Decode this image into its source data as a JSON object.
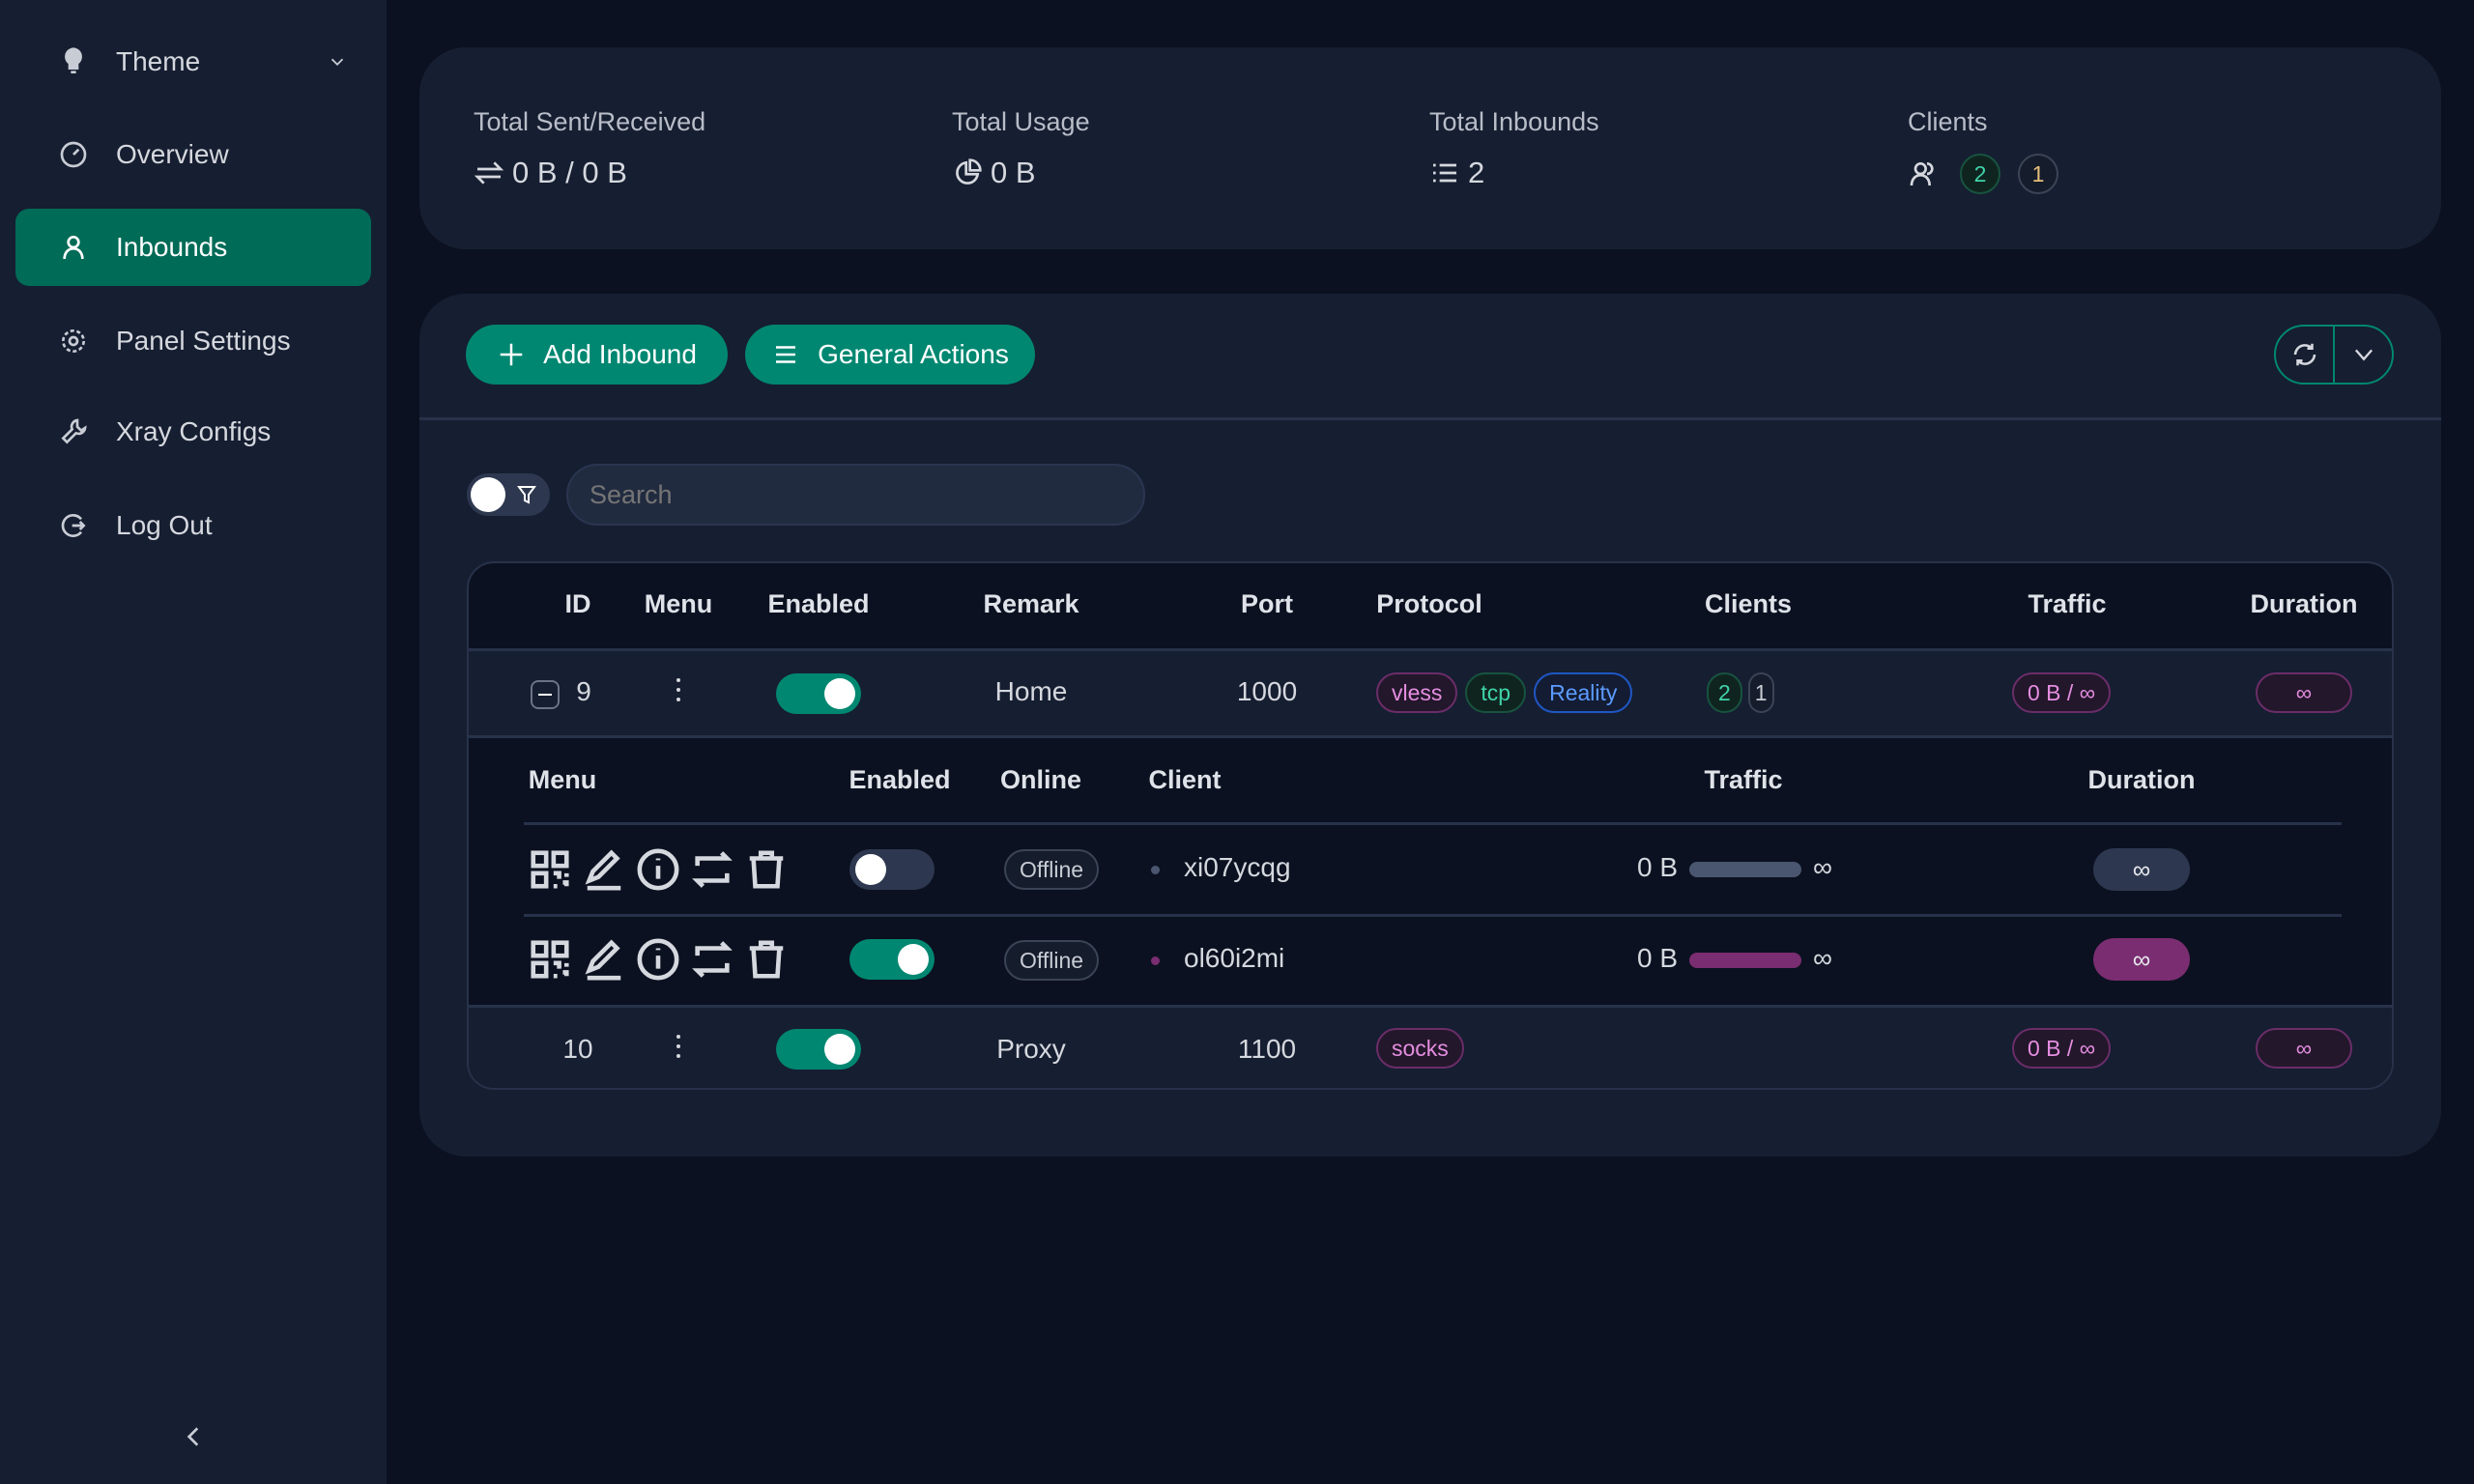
{
  "sidebar": {
    "items": [
      {
        "label": "Theme",
        "icon": "bulb-icon"
      },
      {
        "label": "Overview",
        "icon": "dashboard-icon"
      },
      {
        "label": "Inbounds",
        "icon": "user-icon",
        "active": true
      },
      {
        "label": "Panel Settings",
        "icon": "gear-icon"
      },
      {
        "label": "Xray Configs",
        "icon": "tool-icon"
      },
      {
        "label": "Log Out",
        "icon": "logout-icon"
      }
    ]
  },
  "stats": {
    "sent_received": {
      "label": "Total Sent/Received",
      "value": "0 B / 0 B"
    },
    "usage": {
      "label": "Total Usage",
      "value": "0 B"
    },
    "inbounds": {
      "label": "Total Inbounds",
      "value": "2"
    },
    "clients": {
      "label": "Clients",
      "active": "2",
      "other": "1"
    }
  },
  "toolbar": {
    "add_label": "Add Inbound",
    "general_label": "General Actions"
  },
  "search": {
    "placeholder": "Search"
  },
  "table": {
    "headers": [
      "ID",
      "Menu",
      "Enabled",
      "Remark",
      "Port",
      "Protocol",
      "Clients",
      "Traffic",
      "Duration"
    ],
    "rows": [
      {
        "id": "9",
        "enabled": true,
        "remark": "Home",
        "port": "1000",
        "protocol": [
          "vless",
          "tcp",
          "Reality"
        ],
        "clients": [
          "2",
          "1"
        ],
        "traffic": "0 B / ∞",
        "duration": "∞",
        "expanded": true
      },
      {
        "id": "10",
        "enabled": true,
        "remark": "Proxy",
        "port": "1100",
        "protocol": [
          "socks"
        ],
        "traffic": "0 B / ∞",
        "duration": "∞"
      }
    ],
    "sub": {
      "headers": [
        "Menu",
        "Enabled",
        "Online",
        "Client",
        "Traffic",
        "Duration"
      ],
      "rows": [
        {
          "enabled": false,
          "online": "Offline",
          "client": "xi07ycqg",
          "traffic_used": "0 B",
          "traffic_limit": "∞",
          "duration": "∞",
          "color": "#4a5670"
        },
        {
          "enabled": true,
          "online": "Offline",
          "client": "ol60i2mi",
          "traffic_used": "0 B",
          "traffic_limit": "∞",
          "duration": "∞",
          "color": "#7a2d70"
        }
      ]
    }
  },
  "colors": {
    "accent": "#008771",
    "active_nav": "#006b57",
    "purple": "#7a2d70"
  }
}
